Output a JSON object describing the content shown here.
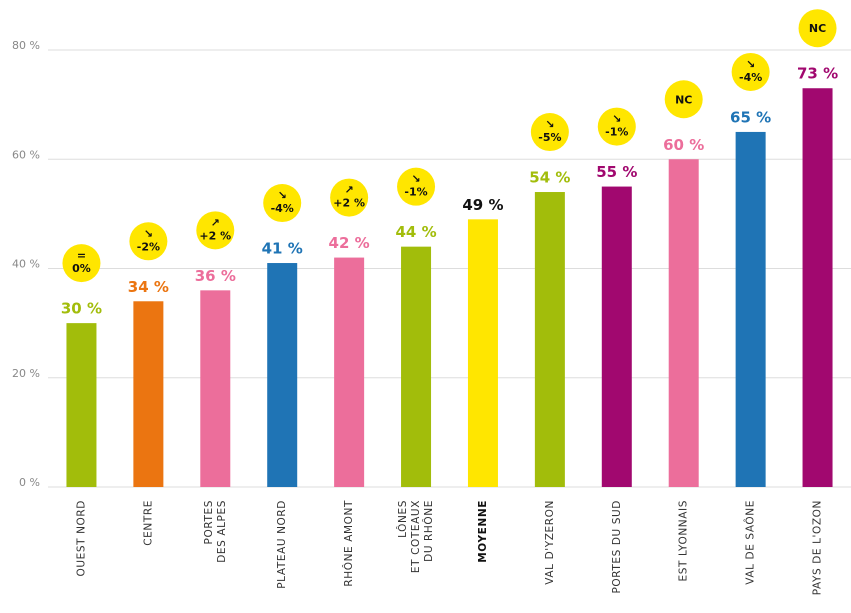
{
  "chart_data": {
    "type": "bar",
    "categories": [
      [
        "OUEST NORD"
      ],
      [
        "CENTRE"
      ],
      [
        "PORTES",
        "DES ALPES"
      ],
      [
        "PLATEAU NORD"
      ],
      [
        "RHÔNE AMONT"
      ],
      [
        "LÔNES",
        "ET COTEAUX",
        "DU RHÔNE"
      ],
      [
        "MOYENNE"
      ],
      [
        "VAL D'YZERON"
      ],
      [
        "PORTES DU SUD"
      ],
      [
        "EST LYONNAIS"
      ],
      [
        "VAL DE SAÔNE"
      ],
      [
        "PAYS DE L'OZON"
      ]
    ],
    "values": [
      30,
      34,
      36,
      41,
      42,
      44,
      49,
      54,
      55,
      60,
      65,
      73
    ],
    "value_labels": [
      "30 %",
      "34 %",
      "36 %",
      "41 %",
      "42 %",
      "44 %",
      "49 %",
      "54 %",
      "55 %",
      "60 %",
      "65 %",
      "73 %"
    ],
    "colors": [
      "#a2bd0b",
      "#eb7511",
      "#ec6e9b",
      "#1f74b5",
      "#ec6e9b",
      "#a2bd0b",
      "#ffe600",
      "#a2bd0b",
      "#a1086f",
      "#ec6e9b",
      "#1f74b5",
      "#a1086f"
    ],
    "highlight_category": 6,
    "badges": [
      {
        "arrow": "=",
        "change": "0%"
      },
      {
        "arrow": "↘",
        "change": "-2%"
      },
      {
        "arrow": "↗",
        "change": "+2 %"
      },
      {
        "arrow": "↘",
        "change": "-4%"
      },
      {
        "arrow": "↗",
        "change": "+2 %"
      },
      {
        "arrow": "↘",
        "change": "-1%"
      },
      null,
      {
        "arrow": "↘",
        "change": "-5%"
      },
      {
        "arrow": "↘",
        "change": "-1%"
      },
      {
        "text": "NC"
      },
      {
        "arrow": "↘",
        "change": "-4%"
      },
      {
        "text": "NC"
      }
    ],
    "ylim": [
      0,
      80
    ],
    "yticks": [
      {
        "value": 0,
        "label": "0 %"
      },
      {
        "value": 20,
        "label": "20 %"
      },
      {
        "value": 40,
        "label": "40 %"
      },
      {
        "value": 60,
        "label": "60 %"
      },
      {
        "value": 80,
        "label": "80 %"
      }
    ],
    "grid": true
  }
}
